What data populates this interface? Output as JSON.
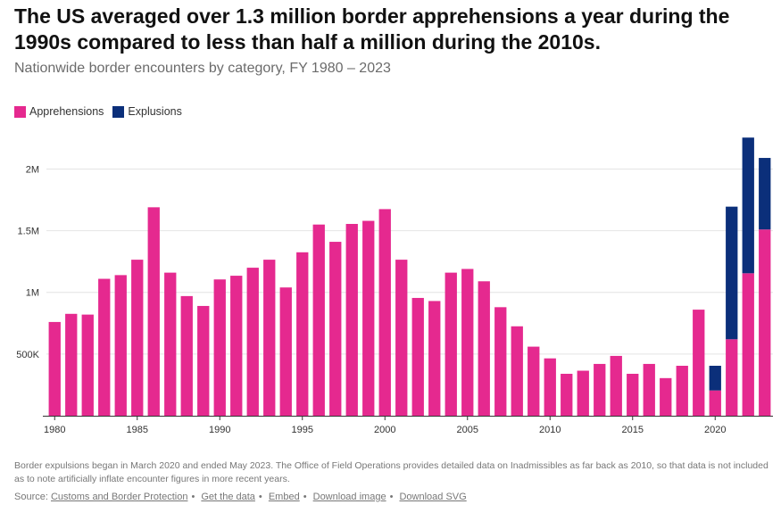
{
  "header": {
    "title": "The US averaged over 1.3 million border apprehensions a year during the 1990s compared to less than half a million during the 2010s.",
    "subtitle": "Nationwide border encounters by category, FY 1980 – 2023"
  },
  "colors": {
    "apprehensions": "#e5298f",
    "expulsions": "#0b2f7a",
    "grid": "#e4e4e4",
    "axis": "#333333"
  },
  "legend": [
    {
      "label": "Apprehensions",
      "color": "#e5298f"
    },
    {
      "label": "Explusions",
      "color": "#0b2f7a"
    }
  ],
  "chart_data": {
    "type": "bar",
    "stacked": true,
    "x": [
      1980,
      1981,
      1982,
      1983,
      1984,
      1985,
      1986,
      1987,
      1988,
      1989,
      1990,
      1991,
      1992,
      1993,
      1994,
      1995,
      1996,
      1997,
      1998,
      1999,
      2000,
      2001,
      2002,
      2003,
      2004,
      2005,
      2006,
      2007,
      2008,
      2009,
      2010,
      2011,
      2012,
      2013,
      2014,
      2015,
      2016,
      2017,
      2018,
      2019,
      2020,
      2021,
      2022,
      2023
    ],
    "series": [
      {
        "name": "Apprehensions",
        "values": [
          760000,
          826000,
          820000,
          1110000,
          1140000,
          1265000,
          1690000,
          1160000,
          970000,
          890000,
          1105000,
          1135000,
          1200000,
          1265000,
          1040000,
          1325000,
          1550000,
          1410000,
          1555000,
          1580000,
          1675000,
          1265000,
          955000,
          930000,
          1160000,
          1190000,
          1090000,
          880000,
          725000,
          560000,
          465000,
          340000,
          365000,
          420000,
          485000,
          340000,
          420000,
          305000,
          405000,
          860000,
          205000,
          620000,
          1155000,
          1510000
        ]
      },
      {
        "name": "Explusions",
        "values": [
          0,
          0,
          0,
          0,
          0,
          0,
          0,
          0,
          0,
          0,
          0,
          0,
          0,
          0,
          0,
          0,
          0,
          0,
          0,
          0,
          0,
          0,
          0,
          0,
          0,
          0,
          0,
          0,
          0,
          0,
          0,
          0,
          0,
          0,
          0,
          0,
          0,
          0,
          0,
          0,
          200000,
          1075000,
          1100000,
          580000
        ]
      }
    ],
    "ylim": [
      0,
      2300000
    ],
    "yticks": [
      500000,
      1000000,
      1500000,
      2000000
    ],
    "ytick_labels": [
      "500K",
      "1M",
      "1.5M",
      "2M"
    ],
    "xticks": [
      1980,
      1985,
      1990,
      1995,
      2000,
      2005,
      2010,
      2015,
      2020
    ],
    "grid": true,
    "legend_position": "top-left"
  },
  "footnote": "Border expulsions began in March 2020 and ended May 2023. The Office of Field Operations provides detailed data on Inadmissibles as far back as 2010, so that data is not included as to note artificially inflate encounter figures in more recent years.",
  "source": {
    "label": "Source:",
    "links": [
      "Customs and Border Protection",
      "Get the data",
      "Embed",
      "Download image",
      "Download SVG"
    ]
  }
}
